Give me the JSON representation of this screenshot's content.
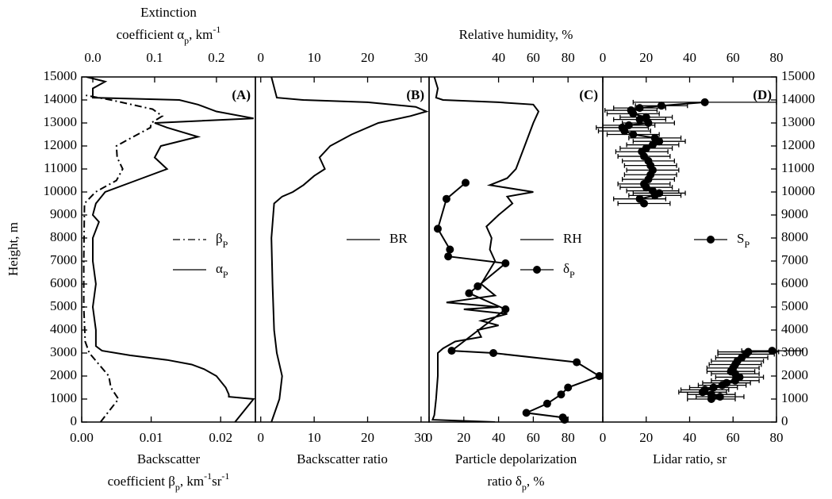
{
  "chart_data": [
    {
      "type": "line",
      "panel_label": "(A)",
      "xlabel": [
        [
          {
            "text": "Backscatter"
          }
        ],
        [
          {
            "text": "coefficient β"
          },
          {
            "text": "p",
            "shift": "sub"
          },
          {
            "text": ", km"
          },
          {
            "text": "-1",
            "shift": "super"
          },
          {
            "text": "sr"
          },
          {
            "text": "-1",
            "shift": "super"
          }
        ]
      ],
      "x2label": [
        [
          {
            "text": "Extinction"
          }
        ],
        [
          {
            "text": "coefficient α"
          },
          {
            "text": "p",
            "shift": "sub"
          },
          {
            "text": ", km"
          },
          {
            "text": "-1",
            "shift": "super"
          }
        ]
      ],
      "ylabel": "Height, m",
      "xlim": [
        0,
        0.025
      ],
      "xticks": [
        {
          "value": 0,
          "label": "0.00"
        },
        {
          "value": 0.01,
          "label": "0.01"
        },
        {
          "value": 0.02,
          "label": "0.02"
        }
      ],
      "x2lim": [
        -0.018,
        0.263
      ],
      "x2ticks": [
        {
          "value": 0,
          "label": "0.0"
        },
        {
          "value": 0.1,
          "label": "0.1"
        },
        {
          "value": 0.2,
          "label": "0.2"
        }
      ],
      "ylim": [
        0,
        15000
      ],
      "yticks": [
        0,
        1000,
        2000,
        3000,
        4000,
        5000,
        6000,
        7000,
        8000,
        9000,
        10000,
        11000,
        12000,
        13000,
        14000,
        15000
      ],
      "series": [
        {
          "name": [
            {
              "text": "β"
            },
            {
              "text": "P",
              "shift": "sub"
            }
          ],
          "color": "#000000",
          "dash": "dash-dot",
          "heights": [
            0,
            500,
            1000,
            1500,
            2000,
            2500,
            3000,
            3500,
            5000,
            7000,
            9500,
            10000,
            10500,
            11000,
            11500,
            12000,
            12300,
            12800,
            13000,
            13300,
            13600,
            14000,
            14200
          ],
          "values": [
            0.0027,
            0.004,
            0.0053,
            0.0042,
            0.0039,
            0.0025,
            0.0011,
            0.0005,
            0.0003,
            0.0003,
            0.0004,
            0.002,
            0.005,
            0.0059,
            0.0051,
            0.005,
            0.0068,
            0.0099,
            0.01,
            0.0116,
            0.0102,
            0.0042,
            0.0006
          ]
        },
        {
          "name": [
            {
              "text": "α"
            },
            {
              "text": "P",
              "shift": "sub"
            }
          ],
          "color": "#000000",
          "dash": "solid",
          "axis": "x2",
          "heights": [
            0,
            500,
            1000,
            1100,
            1200,
            1500,
            2000,
            2300,
            2500,
            2700,
            2900,
            3100,
            3300,
            4000,
            5000,
            6000,
            7000,
            8000,
            8700,
            9000,
            9500,
            10000,
            10500,
            11000,
            11500,
            12000,
            12400,
            12800,
            13000,
            13200,
            13500,
            13800,
            14000,
            14100,
            14500,
            14800,
            15000
          ],
          "values": [
            0.23,
            0.245,
            0.26,
            0.22,
            0.22,
            0.215,
            0.2,
            0.18,
            0.16,
            0.12,
            0.06,
            0.015,
            0.005,
            0.005,
            0,
            0.005,
            0,
            0,
            0.01,
            0,
            0.005,
            0.02,
            0.07,
            0.12,
            0.1,
            0.11,
            0.17,
            0.12,
            0.1,
            0.26,
            0.2,
            0.17,
            0.14,
            0,
            0,
            0.02,
            -0.01
          ]
        }
      ]
    },
    {
      "type": "line",
      "panel_label": "(B)",
      "xlabel": [
        [
          {
            "text": "Backscatter ratio"
          }
        ]
      ],
      "xlim": [
        -1,
        31.5
      ],
      "xticks": [
        0,
        10,
        20,
        30
      ],
      "x2lim": [
        -1,
        31.5
      ],
      "x2ticks": [
        0,
        10,
        20,
        30
      ],
      "ylim": [
        0,
        15000
      ],
      "series": [
        {
          "name": [
            {
              "text": "BR"
            }
          ],
          "color": "#000000",
          "dash": "solid",
          "heights": [
            0,
            1000,
            2000,
            3000,
            4000,
            6000,
            8000,
            9500,
            9800,
            10000,
            10300,
            10700,
            11000,
            11500,
            12000,
            12500,
            13000,
            13300,
            13500,
            13700,
            13900,
            14000,
            14100,
            15000
          ],
          "values": [
            2,
            3.5,
            4,
            3,
            2.5,
            2.2,
            2,
            2.5,
            4,
            6,
            8,
            10,
            12,
            11,
            13,
            17,
            22,
            28,
            31,
            29,
            20,
            8,
            3,
            2
          ]
        }
      ]
    },
    {
      "type": "line",
      "panel_label": "(C)",
      "xlabel": [
        [
          {
            "text": "Particle depolarization"
          }
        ],
        [
          {
            "text": "ratio δ"
          },
          {
            "text": "p",
            "shift": "sub"
          },
          {
            "text": ", %"
          }
        ]
      ],
      "x2label": [
        [
          {
            "text": "Relative humidity, %"
          }
        ]
      ],
      "xlim": [
        0,
        100
      ],
      "xticks": [
        0,
        20,
        40,
        60,
        80
      ],
      "x2lim": [
        0,
        100
      ],
      "x2ticks": [
        40,
        60,
        80
      ],
      "ylim": [
        0,
        15000
      ],
      "series": [
        {
          "name": [
            {
              "text": "RH"
            }
          ],
          "color": "#000000",
          "dash": "solid",
          "axis": "x2",
          "heights": [
            0,
            100,
            300,
            1000,
            2000,
            3000,
            3200,
            3500,
            3700,
            4000,
            4200,
            4400,
            4700,
            4900,
            5000,
            5200,
            5500,
            6000,
            7000,
            7500,
            8000,
            8500,
            9000,
            9500,
            9800,
            10000,
            10300,
            10600,
            11000,
            12000,
            13000,
            13500,
            13800,
            13900,
            14000,
            14100,
            14500,
            15000
          ],
          "values": [
            38,
            2,
            3,
            4,
            5,
            5,
            8,
            15,
            30,
            28,
            40,
            30,
            45,
            20,
            40,
            10,
            38,
            30,
            38,
            35,
            36,
            33,
            40,
            48,
            45,
            60,
            35,
            45,
            50,
            55,
            60,
            63,
            60,
            40,
            8,
            4,
            5,
            3
          ]
        },
        {
          "name": [
            {
              "text": "δ"
            },
            {
              "text": "P",
              "shift": "sub"
            }
          ],
          "color": "#000000",
          "dash": "solid",
          "marker": "circle",
          "heights": [
            10400,
            9700,
            8400,
            7500,
            7200,
            6900,
            5900,
            5600,
            4900,
            3100,
            3000,
            2600,
            2000,
            1500,
            1200,
            800,
            400,
            200,
            100
          ],
          "values": [
            21,
            10,
            5,
            12,
            11,
            44,
            28,
            23,
            44,
            13,
            37,
            85,
            98,
            80,
            76,
            68,
            56,
            77,
            78
          ]
        }
      ]
    },
    {
      "type": "line",
      "panel_label": "(D)",
      "xlabel": [
        [
          {
            "text": "Lidar ratio, sr"
          }
        ]
      ],
      "xlim": [
        0,
        80
      ],
      "xticks": [
        0,
        20,
        40,
        60,
        80
      ],
      "x2lim": [
        0,
        80
      ],
      "x2ticks": [
        0,
        20,
        40,
        60,
        80
      ],
      "ylim": [
        0,
        15000
      ],
      "yticks": [
        0,
        1000,
        2000,
        3000,
        4000,
        5000,
        6000,
        7000,
        8000,
        9000,
        10000,
        11000,
        12000,
        13000,
        14000,
        15000
      ],
      "series": [
        {
          "name": [
            {
              "text": "S"
            },
            {
              "text": "P",
              "shift": "sub"
            }
          ],
          "color": "#000000",
          "dash": "solid",
          "marker": "circle",
          "heights": [
            13900,
            13750,
            13650,
            13550,
            13400,
            13250,
            13150,
            13000,
            12900,
            12800,
            12650,
            12500,
            12350,
            12200,
            12050,
            11900,
            11750,
            11550,
            11350,
            11150,
            10950,
            10750,
            10550,
            10350,
            10200,
            10050,
            9950,
            9850,
            9700,
            9500,
            null,
            3100,
            3050,
            2950,
            2800,
            2650,
            2500,
            2350,
            2200,
            2100,
            1950,
            1800,
            1700,
            1600,
            1500,
            1400,
            1300,
            1200,
            1100,
            1000
          ],
          "values": [
            47,
            27,
            17,
            13,
            14,
            20,
            17,
            21,
            12,
            9,
            10,
            14,
            24,
            26,
            23,
            20,
            18,
            19,
            21,
            22,
            23,
            22,
            21,
            19,
            20,
            23,
            26,
            24,
            17,
            19,
            null,
            78,
            67,
            66,
            64,
            62,
            61,
            60,
            59,
            61,
            63,
            61,
            57,
            55,
            51,
            47,
            46,
            50,
            54,
            50
          ],
          "errors": [
            33,
            12,
            12,
            12,
            12,
            12,
            12,
            12,
            12,
            12,
            12,
            12,
            12,
            12,
            12,
            12,
            12,
            12,
            12,
            12,
            12,
            12,
            12,
            12,
            12,
            12,
            12,
            12,
            12,
            12,
            null,
            14,
            14,
            13,
            12,
            12,
            12,
            12,
            11,
            11,
            11,
            11,
            11,
            11,
            11,
            11,
            11,
            11,
            11,
            11
          ]
        }
      ]
    }
  ]
}
